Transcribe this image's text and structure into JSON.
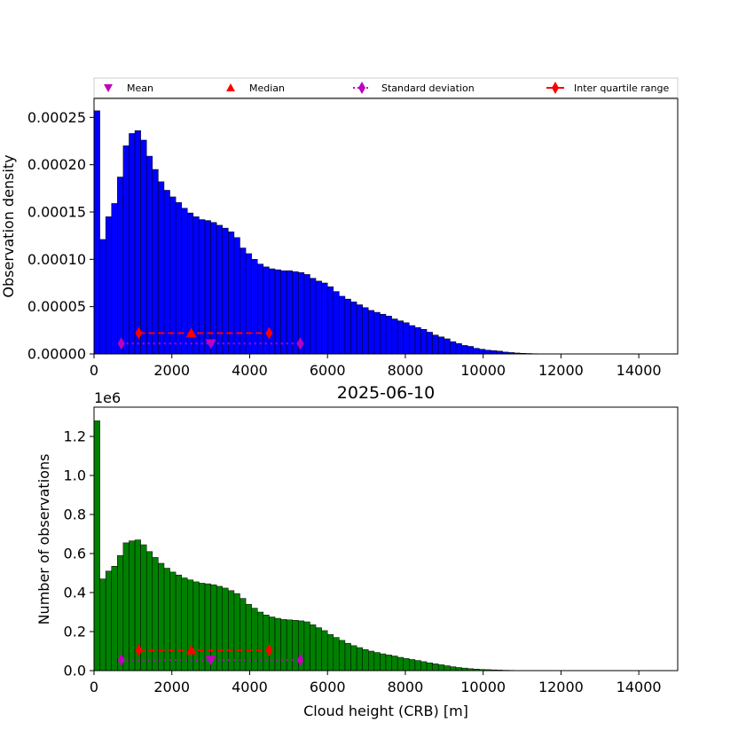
{
  "figure": {
    "title": "2025-06-10",
    "colors": {
      "top_bars": "#0000ff",
      "bottom_bars": "#008000",
      "bar_edge": "#000000",
      "mean_std_marker": "#bf00bf",
      "median_iqr_marker": "#ff0000"
    }
  },
  "legend": {
    "items": [
      {
        "label": "Mean",
        "marker": "triangle-down",
        "color": "#bf00bf"
      },
      {
        "label": "Median",
        "marker": "triangle-up",
        "color": "#ff0000"
      },
      {
        "label": "Standard deviation",
        "marker": "thin-diamond-dotted",
        "color": "#bf00bf"
      },
      {
        "label": "Inter quartile range",
        "marker": "thin-diamond-solid",
        "color": "#ff0000"
      }
    ]
  },
  "chart_data": [
    {
      "type": "bar",
      "panel": "top",
      "title": "",
      "xlabel": "",
      "ylabel": "Observation density",
      "xlim": [
        0,
        15000
      ],
      "ylim": [
        0,
        0.00027
      ],
      "bin_width": 150,
      "x_ticks": [
        0,
        2000,
        4000,
        6000,
        8000,
        10000,
        12000,
        14000
      ],
      "x_tick_labels": [
        "0",
        "2000",
        "4000",
        "6000",
        "8000",
        "10000",
        "12000",
        "14000"
      ],
      "y_ticks": [
        0,
        5e-05,
        0.0001,
        0.00015,
        0.0002,
        0.00025
      ],
      "y_tick_labels": [
        "0.00000",
        "0.00005",
        "0.00010",
        "0.00015",
        "0.00020",
        "0.00025"
      ],
      "values": [
        0.000257,
        0.000121,
        0.000145,
        0.000159,
        0.000187,
        0.00022,
        0.000233,
        0.000236,
        0.000226,
        0.000209,
        0.000195,
        0.000182,
        0.000173,
        0.000166,
        0.00016,
        0.000154,
        0.000149,
        0.000145,
        0.000142,
        0.000141,
        0.000139,
        0.000136,
        0.000133,
        0.000129,
        0.000123,
        0.000112,
        0.000106,
        0.0001,
        9.5e-05,
        9.2e-05,
        9e-05,
        8.9e-05,
        8.8e-05,
        8.8e-05,
        8.7e-05,
        8.6e-05,
        8.4e-05,
        8e-05,
        7.7e-05,
        7.5e-05,
        7.1e-05,
        6.6e-05,
        6.1e-05,
        5.8e-05,
        5.5e-05,
        5.2e-05,
        4.9e-05,
        4.6e-05,
        4.4e-05,
        4.2e-05,
        4e-05,
        3.7e-05,
        3.5e-05,
        3.3e-05,
        3e-05,
        2.8e-05,
        2.6e-05,
        2.3e-05,
        2e-05,
        1.8e-05,
        1.6e-05,
        1.3e-05,
        1.1e-05,
        9e-06,
        8e-06,
        6e-06,
        5e-06,
        4e-06,
        3.5e-06,
        3e-06,
        2e-06,
        1.5e-06,
        1e-06,
        7e-07,
        5e-07,
        3e-07,
        2e-07,
        1e-07,
        1e-07,
        5e-08,
        0,
        0,
        0,
        0,
        0,
        0,
        0,
        0,
        0,
        0,
        0,
        0,
        0,
        0,
        0,
        0,
        0,
        0,
        0,
        0
      ],
      "stats": {
        "mean": {
          "x": 3000,
          "y": 1.1e-05
        },
        "median": {
          "x": 2500,
          "y": 2.2e-05
        },
        "std_range": {
          "x": [
            700,
            5300
          ],
          "y": 1.1e-05
        },
        "iqr_range": {
          "x": [
            1150,
            4500
          ],
          "y": 2.2e-05
        }
      }
    },
    {
      "type": "bar",
      "panel": "bottom",
      "title": "2025-06-10",
      "xlabel": "Cloud height (CRB) [m]",
      "ylabel": "Number of observations",
      "y_offset_label": "1e6",
      "xlim": [
        0,
        15000
      ],
      "ylim": [
        0,
        1.35
      ],
      "bin_width": 150,
      "x_ticks": [
        0,
        2000,
        4000,
        6000,
        8000,
        10000,
        12000,
        14000
      ],
      "x_tick_labels": [
        "0",
        "2000",
        "4000",
        "6000",
        "8000",
        "10000",
        "12000",
        "14000"
      ],
      "y_ticks": [
        0,
        0.2,
        0.4,
        0.6,
        0.8,
        1.0,
        1.2
      ],
      "y_tick_labels": [
        "0.0",
        "0.2",
        "0.4",
        "0.6",
        "0.8",
        "1.0",
        "1.2"
      ],
      "values": [
        1.28,
        0.47,
        0.51,
        0.535,
        0.59,
        0.655,
        0.665,
        0.67,
        0.645,
        0.61,
        0.58,
        0.55,
        0.525,
        0.505,
        0.49,
        0.475,
        0.465,
        0.455,
        0.448,
        0.445,
        0.44,
        0.432,
        0.423,
        0.41,
        0.395,
        0.37,
        0.34,
        0.32,
        0.3,
        0.285,
        0.275,
        0.268,
        0.262,
        0.26,
        0.258,
        0.255,
        0.25,
        0.235,
        0.22,
        0.205,
        0.185,
        0.17,
        0.155,
        0.14,
        0.128,
        0.118,
        0.108,
        0.1,
        0.093,
        0.086,
        0.08,
        0.075,
        0.068,
        0.062,
        0.057,
        0.052,
        0.046,
        0.04,
        0.035,
        0.03,
        0.025,
        0.02,
        0.016,
        0.013,
        0.01,
        0.008,
        0.006,
        0.005,
        0.004,
        0.003,
        0.002,
        0.0015,
        0.001,
        0.0007,
        0.0005,
        0.0003,
        0.0002,
        0.0001,
        0.0001,
        5e-05,
        0,
        0,
        0,
        0,
        0,
        0,
        0,
        0,
        0,
        0,
        0,
        0,
        0,
        0,
        0,
        0,
        0,
        0,
        0,
        0
      ],
      "stats": {
        "mean": {
          "x": 3000,
          "y": 0.055
        },
        "median": {
          "x": 2500,
          "y": 0.105
        },
        "std_range": {
          "x": [
            700,
            5300
          ],
          "y": 0.055
        },
        "iqr_range": {
          "x": [
            1150,
            4500
          ],
          "y": 0.105
        }
      }
    }
  ]
}
